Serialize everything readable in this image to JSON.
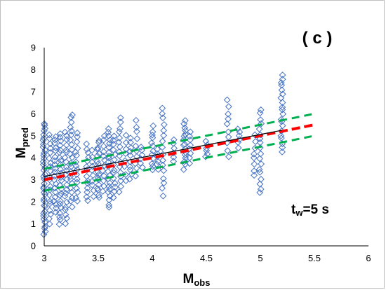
{
  "chart_data": {
    "type": "scatter",
    "panel_label": "( c )",
    "annotation": {
      "main": "t",
      "sub": "w",
      "rest": "=5 s"
    },
    "xlabel": {
      "main": "M",
      "sub": "obs"
    },
    "ylabel": {
      "main": "M",
      "sub": "pred"
    },
    "xlim": [
      3,
      6
    ],
    "ylim": [
      0,
      9
    ],
    "xticks": [
      "3",
      "3.5",
      "4",
      "4.5",
      "5",
      "5.5",
      "6"
    ],
    "yticks": [
      "0",
      "1",
      "2",
      "3",
      "4",
      "5",
      "6",
      "7",
      "8",
      "9"
    ],
    "grid": "none",
    "marker": "diamond-open",
    "colors": {
      "points": "#4472C4",
      "one_to_one": "#FF0000",
      "bounds": "#00B050",
      "fit": "#000000"
    },
    "reference_lines": [
      {
        "role": "one-to-one",
        "style": "dashed",
        "x": [
          3,
          5.5
        ],
        "y": [
          3,
          5.5
        ]
      },
      {
        "role": "upper-bound",
        "style": "dashed",
        "x": [
          3,
          5.5
        ],
        "y": [
          3.5,
          6.0
        ]
      },
      {
        "role": "lower-bound",
        "style": "dashed",
        "x": [
          3,
          5.5
        ],
        "y": [
          2.5,
          5.0
        ]
      },
      {
        "role": "regression-fit",
        "style": "solid",
        "x": [
          3,
          5.2
        ],
        "y": [
          3.15,
          5.25
        ]
      }
    ],
    "clusters": [
      {
        "x": 3.0,
        "ymin": 0.5,
        "ymax": 5.6,
        "n": 38
      },
      {
        "x": 3.05,
        "ymin": 1.0,
        "ymax": 5.1,
        "n": 20
      },
      {
        "x": 3.1,
        "ymin": 1.5,
        "ymax": 5.0,
        "n": 20
      },
      {
        "x": 3.15,
        "ymin": 1.0,
        "ymax": 5.1,
        "n": 24
      },
      {
        "x": 3.2,
        "ymin": 1.0,
        "ymax": 5.2,
        "n": 22
      },
      {
        "x": 3.25,
        "ymin": 1.8,
        "ymax": 6.0,
        "n": 22
      },
      {
        "x": 3.3,
        "ymin": 2.0,
        "ymax": 5.1,
        "n": 16
      },
      {
        "x": 3.4,
        "ymin": 2.0,
        "ymax": 4.6,
        "n": 14
      },
      {
        "x": 3.45,
        "ymin": 2.3,
        "ymax": 4.3,
        "n": 10
      },
      {
        "x": 3.5,
        "ymin": 2.2,
        "ymax": 4.8,
        "n": 18
      },
      {
        "x": 3.55,
        "ymin": 2.5,
        "ymax": 5.0,
        "n": 12
      },
      {
        "x": 3.6,
        "ymin": 1.7,
        "ymax": 5.3,
        "n": 22
      },
      {
        "x": 3.65,
        "ymin": 2.2,
        "ymax": 5.0,
        "n": 14
      },
      {
        "x": 3.7,
        "ymin": 2.5,
        "ymax": 5.8,
        "n": 16
      },
      {
        "x": 3.75,
        "ymin": 3.0,
        "ymax": 5.0,
        "n": 8
      },
      {
        "x": 3.8,
        "ymin": 3.0,
        "ymax": 4.9,
        "n": 10
      },
      {
        "x": 3.85,
        "ymin": 3.2,
        "ymax": 5.7,
        "n": 10
      },
      {
        "x": 3.9,
        "ymin": 3.5,
        "ymax": 4.5,
        "n": 6
      },
      {
        "x": 4.0,
        "ymin": 3.4,
        "ymax": 5.4,
        "n": 12
      },
      {
        "x": 4.05,
        "ymin": 3.5,
        "ymax": 4.4,
        "n": 6
      },
      {
        "x": 4.1,
        "ymin": 2.3,
        "ymax": 6.3,
        "n": 16
      },
      {
        "x": 4.2,
        "ymin": 3.8,
        "ymax": 4.8,
        "n": 6
      },
      {
        "x": 4.3,
        "ymin": 3.5,
        "ymax": 5.7,
        "n": 16
      },
      {
        "x": 4.35,
        "ymin": 3.8,
        "ymax": 5.2,
        "n": 8
      },
      {
        "x": 4.5,
        "ymin": 4.0,
        "ymax": 4.8,
        "n": 6
      },
      {
        "x": 4.7,
        "ymin": 4.1,
        "ymax": 6.6,
        "n": 10
      },
      {
        "x": 4.8,
        "ymin": 4.5,
        "ymax": 5.3,
        "n": 6
      },
      {
        "x": 4.95,
        "ymin": 3.2,
        "ymax": 5.0,
        "n": 8
      },
      {
        "x": 5.0,
        "ymin": 2.4,
        "ymax": 6.2,
        "n": 18
      },
      {
        "x": 5.2,
        "ymin": 4.3,
        "ymax": 7.8,
        "n": 20
      }
    ]
  }
}
